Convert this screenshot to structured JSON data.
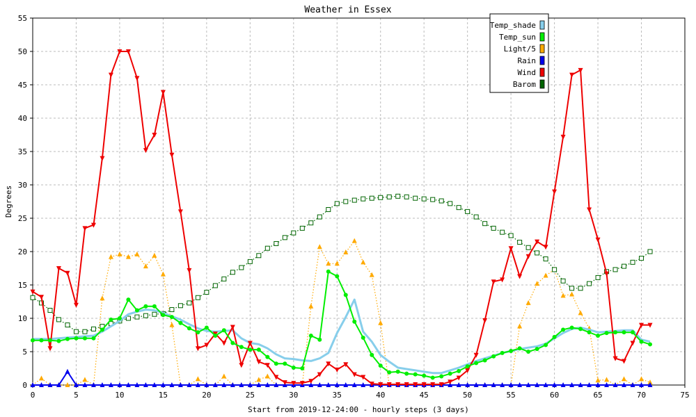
{
  "chart_data": {
    "type": "line",
    "title": "Weather in Essex",
    "xlabel": "Start from 2019-12-24:00 - hourly steps (3 days)",
    "ylabel": "Degrees",
    "xlim": [
      0,
      75
    ],
    "ylim": [
      0,
      55
    ],
    "xticks": [
      0,
      5,
      10,
      15,
      20,
      25,
      30,
      35,
      40,
      45,
      50,
      55,
      60,
      65,
      70,
      75
    ],
    "yticks": [
      0,
      5,
      10,
      15,
      20,
      25,
      30,
      35,
      40,
      45,
      50,
      55
    ],
    "grid": true,
    "legend_position": "top-right",
    "series": [
      {
        "name": "Temp_shade",
        "color": "#87ceeb",
        "style": "solid",
        "marker": "none",
        "values": [
          6.9,
          6.9,
          6.9,
          7.0,
          7.1,
          7.2,
          7.3,
          7.4,
          8.0,
          8.8,
          9.6,
          10.6,
          11.0,
          11.3,
          11.2,
          10.8,
          10.3,
          9.8,
          9.1,
          8.5,
          8.1,
          8.0,
          8.1,
          8.2,
          7.0,
          6.3,
          6.1,
          5.5,
          4.6,
          4.0,
          3.9,
          3.7,
          3.6,
          4.0,
          4.8,
          7.8,
          10.2,
          12.8,
          8.0,
          6.5,
          4.5,
          3.5,
          2.6,
          2.4,
          2.2,
          2.0,
          1.8,
          1.8,
          2.2,
          2.6,
          3.1,
          3.6,
          4.0,
          4.4,
          4.8,
          5.1,
          5.4,
          5.6,
          5.8,
          6.2,
          7.0,
          7.8,
          8.4,
          8.6,
          8.3,
          7.9,
          8.0,
          8.1,
          8.2,
          8.2,
          6.8,
          6.5
        ]
      },
      {
        "name": "Temp_sun",
        "color": "#00ee00",
        "style": "solid",
        "marker": "circle",
        "values": [
          6.7,
          6.7,
          6.7,
          6.6,
          6.9,
          7.0,
          7.0,
          7.0,
          8.3,
          9.8,
          10.0,
          12.8,
          11.2,
          11.8,
          11.8,
          10.5,
          10.2,
          9.3,
          8.5,
          7.9,
          8.6,
          7.4,
          8.2,
          6.3,
          5.7,
          5.3,
          5.3,
          4.2,
          3.2,
          3.2,
          2.6,
          2.5,
          7.4,
          6.8,
          17.0,
          16.3,
          13.5,
          9.5,
          7.1,
          4.5,
          2.9,
          1.9,
          2.0,
          1.7,
          1.6,
          1.4,
          1.1,
          1.3,
          1.7,
          2.1,
          2.8,
          3.3,
          3.7,
          4.3,
          4.8,
          5.1,
          5.5,
          5.0,
          5.4,
          6.0,
          7.2,
          8.3,
          8.6,
          8.4,
          7.9,
          7.4,
          7.8,
          7.9,
          7.9,
          7.9,
          6.5,
          6.1
        ]
      },
      {
        "name": "Light/5",
        "color": "#ffaa00",
        "style": "dotted",
        "marker": "triangle-up",
        "values": [
          0,
          1.0,
          0,
          0,
          0,
          0,
          0.8,
          0,
          13.0,
          19.2,
          19.6,
          19.2,
          19.6,
          17.8,
          19.4,
          16.6,
          9.0,
          0,
          0,
          0.9,
          0,
          0,
          1.3,
          0,
          0,
          0,
          0.8,
          1.3,
          0,
          0,
          0,
          0,
          11.8,
          20.7,
          18.2,
          18.2,
          19.9,
          21.6,
          18.4,
          16.5,
          9.3,
          0,
          0,
          0,
          0,
          0,
          0,
          0,
          0,
          0,
          0,
          0,
          0,
          0,
          0,
          0,
          8.8,
          12.3,
          15.2,
          16.4,
          17.3,
          13.4,
          13.6,
          10.8,
          8.5,
          0.7,
          0.8,
          0,
          0.9,
          0,
          0.9,
          0.4
        ]
      },
      {
        "name": "Rain",
        "color": "#0000ee",
        "style": "solid",
        "marker": "triangle-up",
        "values": [
          0,
          0,
          0,
          0,
          2.0,
          0,
          0,
          0,
          0,
          0,
          0,
          0,
          0,
          0,
          0,
          0,
          0,
          0,
          0,
          0,
          0,
          0,
          0,
          0,
          0,
          0,
          0,
          0,
          0,
          0,
          0,
          0,
          0,
          0,
          0,
          0,
          0,
          0,
          0,
          0,
          0,
          0,
          0,
          0,
          0,
          0,
          0,
          0,
          0,
          0,
          0,
          0,
          0,
          0,
          0,
          0,
          0,
          0,
          0,
          0,
          0,
          0,
          0,
          0,
          0,
          0,
          0,
          0,
          0,
          0,
          0,
          0
        ]
      },
      {
        "name": "Wind",
        "color": "#ee0000",
        "style": "solid",
        "marker": "triangle-down",
        "values": [
          14.0,
          13.2,
          5.5,
          17.5,
          16.8,
          12.0,
          23.5,
          24.0,
          34.0,
          46.5,
          50.0,
          50.0,
          46.0,
          35.2,
          37.5,
          43.9,
          34.5,
          26.0,
          17.2,
          5.5,
          6.0,
          7.7,
          6.3,
          8.7,
          3.0,
          6.3,
          3.5,
          3.0,
          1.2,
          0.4,
          0.3,
          0.3,
          0.6,
          1.6,
          3.2,
          2.3,
          3.1,
          1.6,
          1.2,
          0.2,
          0.1,
          0.1,
          0.1,
          0.1,
          0.1,
          0.1,
          0.1,
          0.1,
          0.5,
          1.1,
          2.2,
          4.5,
          9.7,
          15.5,
          15.8,
          20.5,
          16.3,
          19.3,
          21.5,
          20.7,
          29.0,
          37.2,
          46.5,
          47.2,
          26.3,
          21.8,
          16.7,
          4.0,
          3.6,
          6.3,
          9.0,
          9.0
        ]
      },
      {
        "name": "Barom",
        "color": "#006400",
        "style": "dotted",
        "marker": "square",
        "values": [
          13.1,
          12.3,
          11.2,
          9.8,
          9.0,
          8.0,
          8.0,
          8.4,
          8.8,
          9.2,
          9.6,
          10.0,
          10.2,
          10.4,
          10.6,
          10.7,
          11.3,
          11.9,
          12.3,
          13.1,
          13.9,
          14.9,
          15.9,
          16.9,
          17.6,
          18.5,
          19.4,
          20.5,
          21.2,
          22.1,
          22.8,
          23.5,
          24.3,
          25.2,
          26.3,
          27.2,
          27.5,
          27.7,
          27.9,
          28.0,
          28.1,
          28.2,
          28.3,
          28.2,
          28.0,
          27.9,
          27.8,
          27.6,
          27.2,
          26.6,
          26.0,
          25.2,
          24.2,
          23.5,
          22.9,
          22.4,
          21.4,
          20.6,
          19.8,
          18.9,
          17.3,
          15.6,
          14.5,
          14.5,
          15.2,
          16.1,
          17.0,
          17.3,
          17.8,
          18.4,
          19.0,
          20.0
        ]
      }
    ]
  }
}
